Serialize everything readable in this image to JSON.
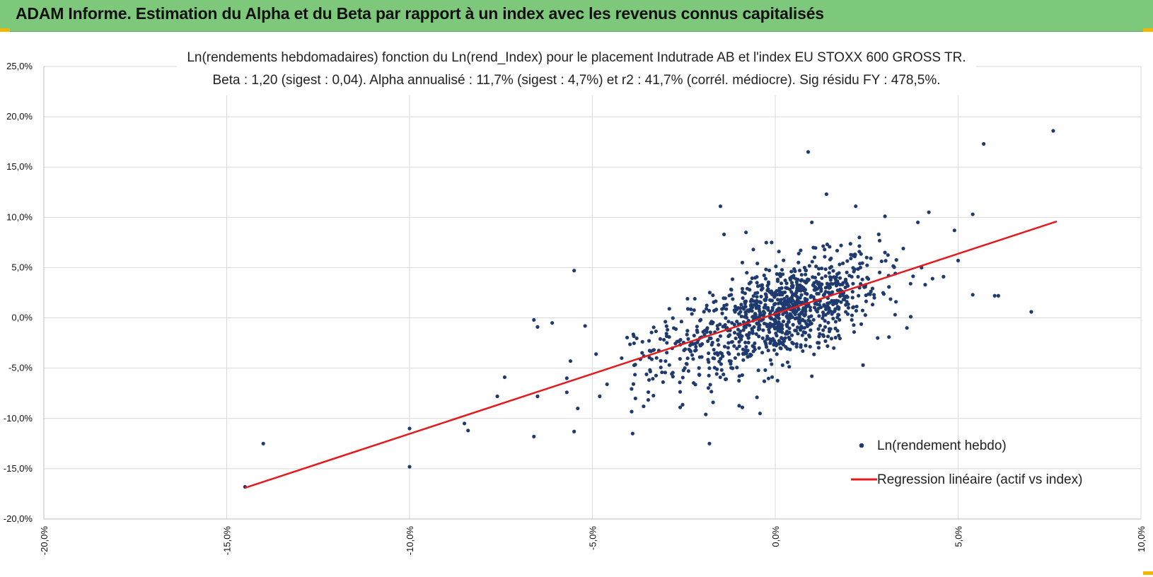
{
  "header": {
    "title": "ADAM Informe. Estimation du Alpha et du Beta par rapport à un index avec les revenus connus capitalisés"
  },
  "colors": {
    "header_bg": "#7ec87c",
    "points": "#1f3a6e",
    "regression": "#e41a1c",
    "corner": "#f2b800"
  },
  "chart_data": {
    "type": "scatter",
    "title_line1": "Ln(rendements hebdomadaires) fonction du Ln(rend_Index) pour le placement Indutrade AB et l'index EU STOXX 600 GROSS TR.",
    "title_line2": "Beta : 1,20 (sigest : 0,04). Alpha annualisé : 11,7% (sigest : 4,7%) et r2 : 41,7% (corrél. médiocre). Sig résidu FY : 478,5%.",
    "xlabel": "",
    "ylabel": "",
    "xlim": [
      -20,
      10
    ],
    "ylim": [
      -20,
      25
    ],
    "x_ticks": [
      "-20,0%",
      "-15,0%",
      "-10,0%",
      "-5,0%",
      "0,0%",
      "5,0%",
      "10,0%"
    ],
    "y_ticks": [
      "25,0%",
      "20,0%",
      "15,0%",
      "10,0%",
      "5,0%",
      "0,0%",
      "-5,0%",
      "-10,0%",
      "-15,0%",
      "-20,0%"
    ],
    "grid": true,
    "legend_position": "bottom-right",
    "series": [
      {
        "name": "Ln(rendement hebdo)",
        "kind": "scatter",
        "points": [
          [
            -14.5,
            -16.8
          ],
          [
            -14.0,
            -12.5
          ],
          [
            -10.0,
            -14.8
          ],
          [
            -10.0,
            -11.0
          ],
          [
            -8.5,
            -10.5
          ],
          [
            -8.4,
            -11.2
          ],
          [
            -7.6,
            -7.8
          ],
          [
            -7.4,
            -5.9
          ],
          [
            -6.6,
            -0.2
          ],
          [
            -6.5,
            -0.9
          ],
          [
            -6.1,
            -0.5
          ],
          [
            -6.6,
            -11.8
          ],
          [
            -6.5,
            -7.8
          ],
          [
            -5.5,
            4.7
          ],
          [
            -5.5,
            -11.3
          ],
          [
            -5.4,
            -9.0
          ],
          [
            -5.2,
            -0.8
          ],
          [
            -5.7,
            -6.0
          ],
          [
            -5.7,
            -7.4
          ],
          [
            -5.6,
            -4.3
          ],
          [
            -4.8,
            -7.8
          ],
          [
            -4.9,
            -3.6
          ],
          [
            -4.6,
            -6.6
          ],
          [
            -3.9,
            -11.5
          ],
          [
            -4.2,
            -4.0
          ],
          [
            -3.6,
            -8.8
          ],
          [
            -3.0,
            -4.3
          ],
          [
            -2.9,
            -1.9
          ],
          [
            -2.6,
            -8.9
          ],
          [
            -2.4,
            1.9
          ],
          [
            -2.2,
            1.9
          ],
          [
            -2.0,
            -2.6
          ],
          [
            -1.9,
            -9.6
          ],
          [
            -1.8,
            -12.5
          ],
          [
            -1.7,
            -8.4
          ],
          [
            -1.8,
            -5.0
          ],
          [
            -1.7,
            -4.0
          ],
          [
            -1.5,
            11.1
          ],
          [
            -1.4,
            8.3
          ],
          [
            -1.2,
            2.8
          ],
          [
            -1.1,
            0.6
          ],
          [
            -0.9,
            5.5
          ],
          [
            -0.9,
            -8.9
          ],
          [
            -0.8,
            8.5
          ],
          [
            -0.7,
            2.8
          ],
          [
            -0.6,
            6.8
          ],
          [
            -0.5,
            3.5
          ],
          [
            -0.5,
            -7.9
          ],
          [
            -0.3,
            -6.3
          ],
          [
            -0.2,
            1.0
          ],
          [
            -0.1,
            7.5
          ],
          [
            -0.1,
            -4.6
          ],
          [
            0.1,
            6.6
          ],
          [
            0.2,
            -4.7
          ],
          [
            0.4,
            0.0
          ],
          [
            0.5,
            4.2
          ],
          [
            0.6,
            2.1
          ],
          [
            0.7,
            -2.7
          ],
          [
            0.8,
            5.0
          ],
          [
            0.9,
            16.5
          ],
          [
            1.0,
            9.5
          ],
          [
            1.0,
            -5.8
          ],
          [
            1.2,
            3.5
          ],
          [
            1.4,
            12.3
          ],
          [
            1.5,
            5.8
          ],
          [
            1.6,
            -3.0
          ],
          [
            1.8,
            7.2
          ],
          [
            2.0,
            1.0
          ],
          [
            2.2,
            11.1
          ],
          [
            2.3,
            8.0
          ],
          [
            2.4,
            -4.7
          ],
          [
            2.5,
            6.0
          ],
          [
            2.7,
            2.3
          ],
          [
            2.8,
            -2.0
          ],
          [
            3.0,
            10.1
          ],
          [
            3.0,
            6.5
          ],
          [
            3.1,
            4.2
          ],
          [
            3.3,
            1.6
          ],
          [
            3.5,
            6.9
          ],
          [
            3.6,
            -1.0
          ],
          [
            3.7,
            3.4
          ],
          [
            3.9,
            9.5
          ],
          [
            4.0,
            5.0
          ],
          [
            4.1,
            3.3
          ],
          [
            4.2,
            10.5
          ],
          [
            4.3,
            3.9
          ],
          [
            4.6,
            4.1
          ],
          [
            4.9,
            8.7
          ],
          [
            5.0,
            5.7
          ],
          [
            5.4,
            10.3
          ],
          [
            5.4,
            2.3
          ],
          [
            5.7,
            17.3
          ],
          [
            6.0,
            2.2
          ],
          [
            6.1,
            2.2
          ],
          [
            7.0,
            0.6
          ],
          [
            7.6,
            18.6
          ]
        ]
      },
      {
        "name": "Regression linéaire (actif vs index)",
        "kind": "line",
        "points": [
          [
            -14.5,
            -16.9
          ],
          [
            7.7,
            9.6
          ]
        ]
      }
    ]
  }
}
